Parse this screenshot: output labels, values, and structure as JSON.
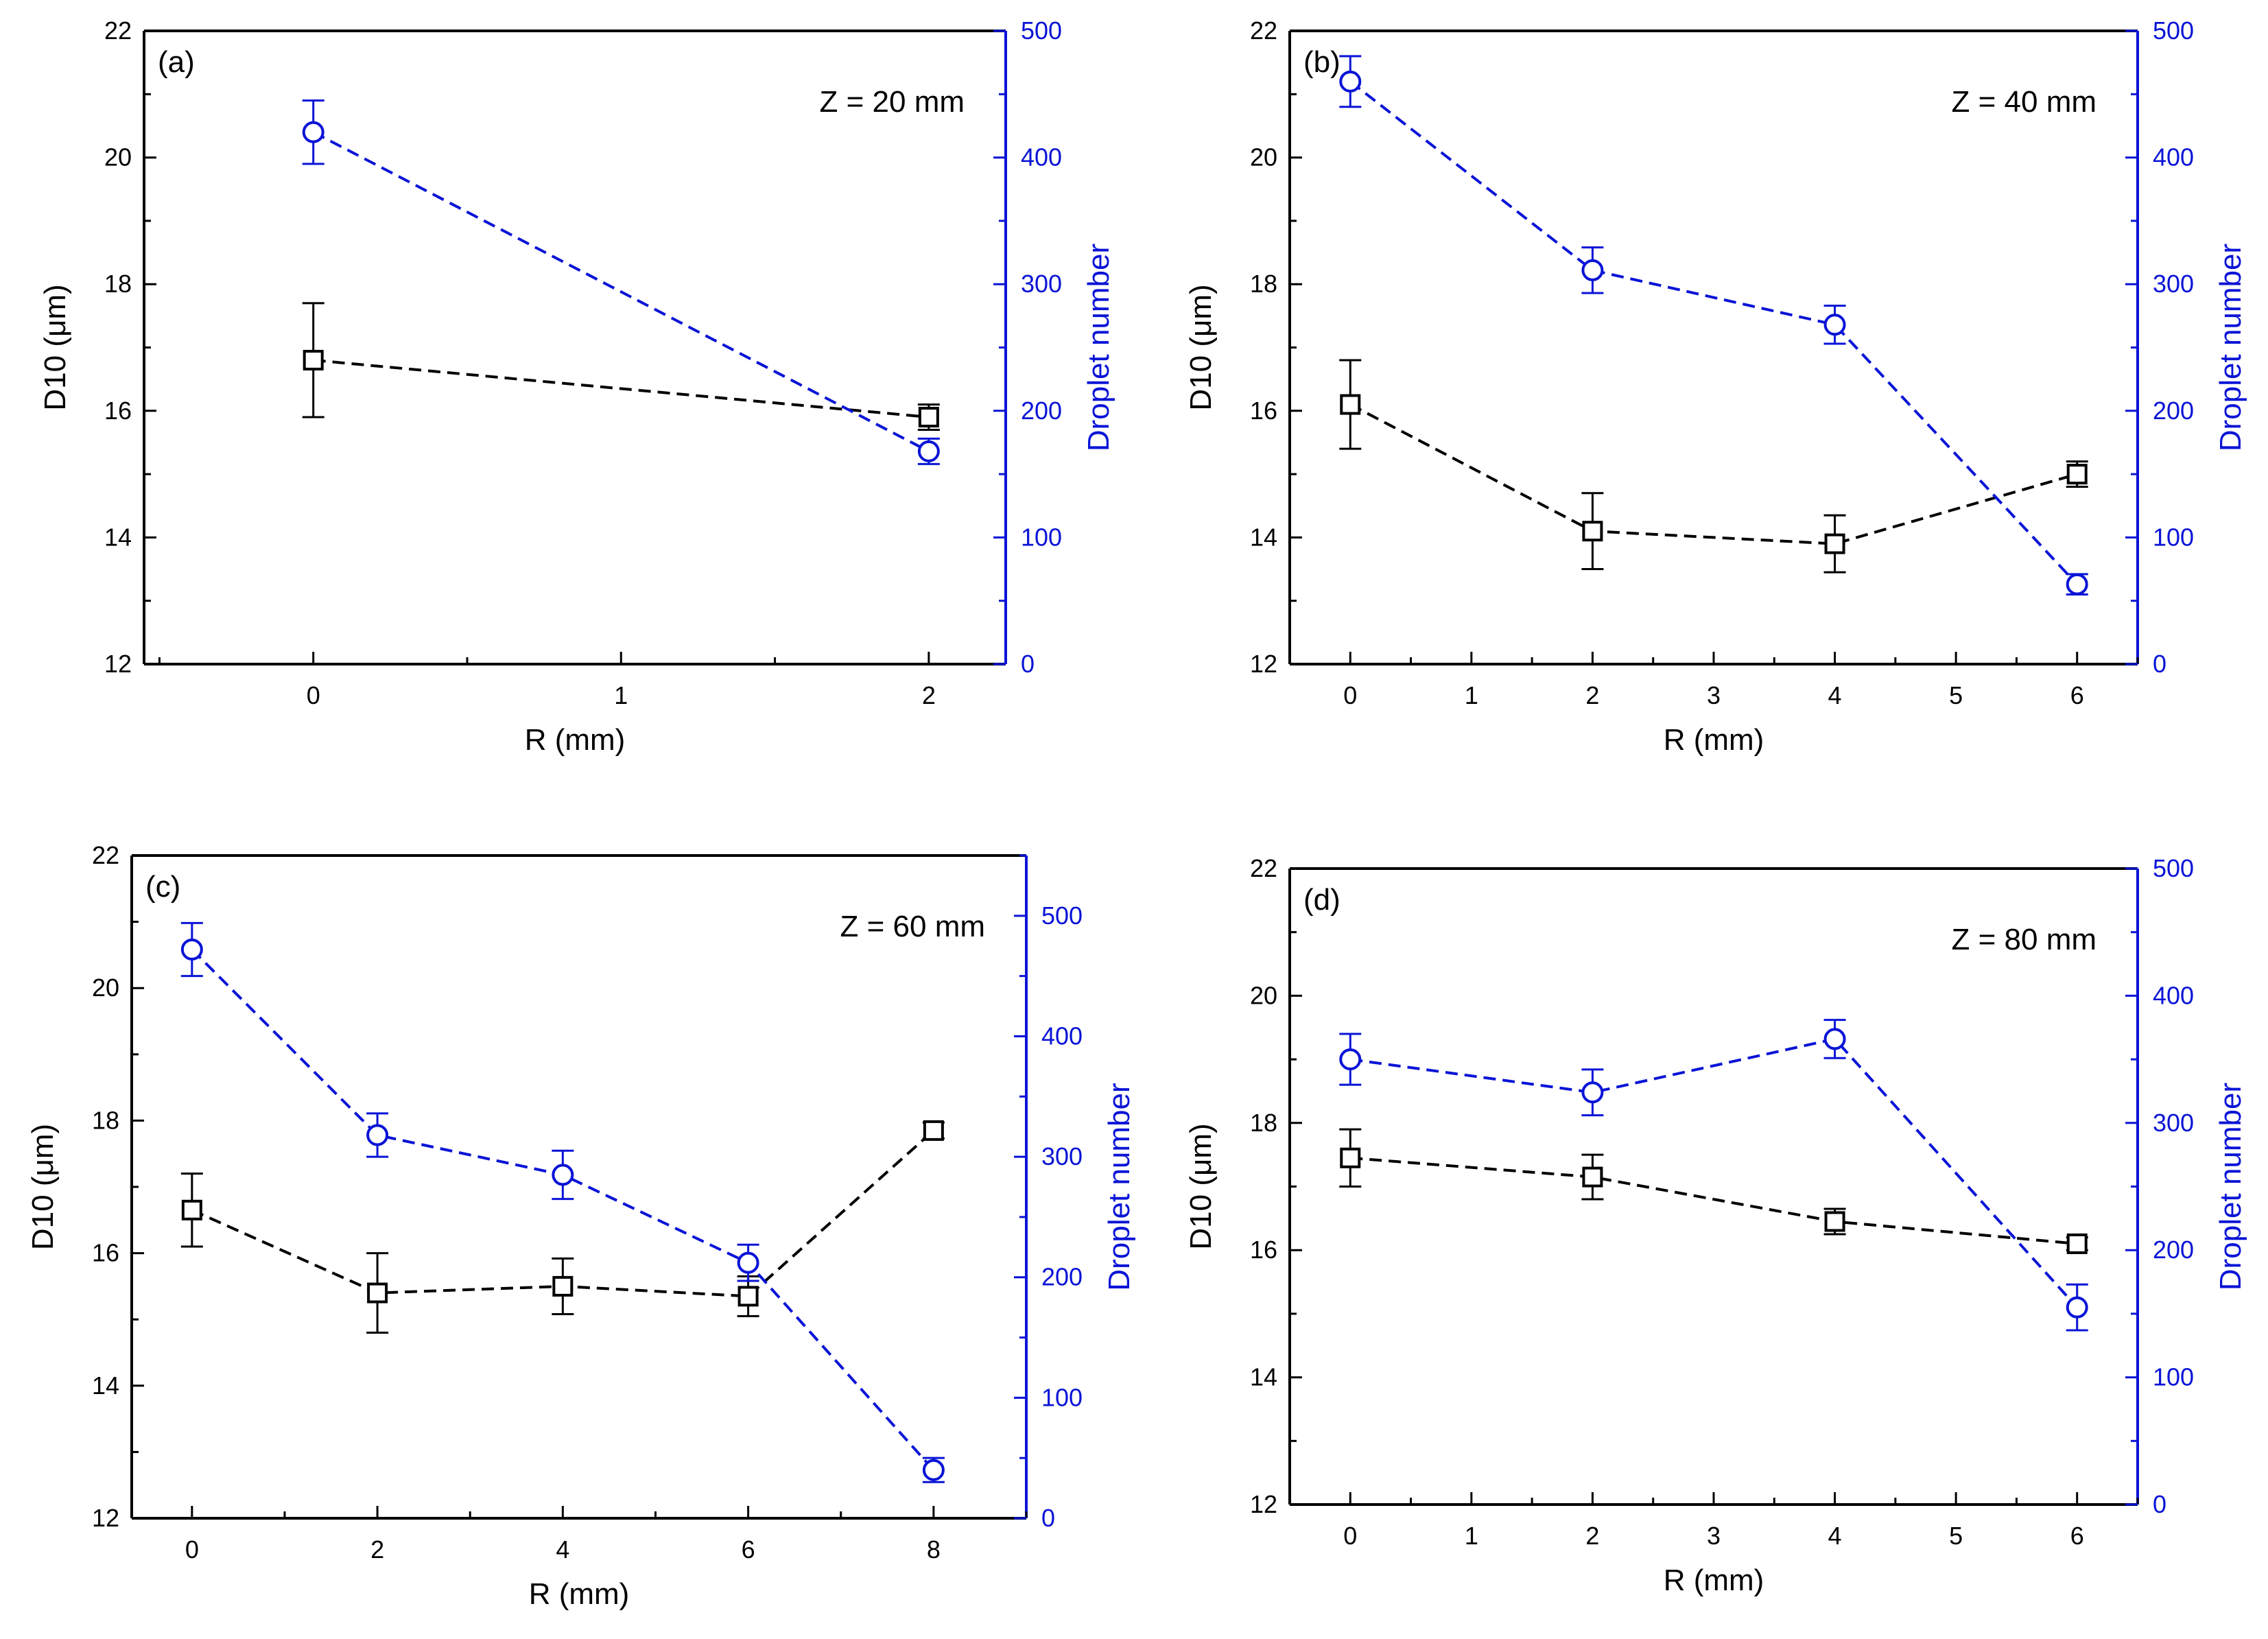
{
  "colors": {
    "d10": "#000000",
    "droplet": "#0a14d6",
    "background": "#ffffff"
  },
  "chart_data": [
    {
      "type": "line",
      "panel_label": "(a)",
      "annotation": "Z = 20 mm",
      "xlabel": "R (mm)",
      "ylabel": "D10 (μm)",
      "ylabel_right": "Droplet number",
      "xlim": [
        -0.55,
        2.25
      ],
      "ylim": [
        12,
        22
      ],
      "ylim_right": [
        0,
        500
      ],
      "xticks": [
        0,
        1,
        2
      ],
      "yticks": [
        12,
        14,
        16,
        18,
        20,
        22
      ],
      "yticks_right": [
        0,
        100,
        200,
        300,
        400,
        500
      ],
      "series": [
        {
          "name": "D10",
          "axis": "left",
          "marker": "square",
          "color": "#000000",
          "x": [
            0,
            2
          ],
          "y": [
            16.8,
            15.9
          ],
          "err": [
            0.9,
            0.2
          ]
        },
        {
          "name": "Droplet number",
          "axis": "right",
          "marker": "circle",
          "color": "#0a14d6",
          "x": [
            0,
            2
          ],
          "y": [
            420,
            168
          ],
          "err": [
            25,
            10
          ]
        }
      ]
    },
    {
      "type": "line",
      "panel_label": "(b)",
      "annotation": "Z = 40 mm",
      "xlabel": "R (mm)",
      "ylabel": "D10 (μm)",
      "ylabel_right": "Droplet number",
      "xlim": [
        -0.5,
        6.5
      ],
      "ylim": [
        12,
        22
      ],
      "ylim_right": [
        0,
        500
      ],
      "xticks": [
        0,
        1,
        2,
        3,
        4,
        5,
        6
      ],
      "yticks": [
        12,
        14,
        16,
        18,
        20,
        22
      ],
      "yticks_right": [
        0,
        100,
        200,
        300,
        400,
        500
      ],
      "series": [
        {
          "name": "D10",
          "axis": "left",
          "marker": "square",
          "color": "#000000",
          "x": [
            0,
            2,
            4,
            6
          ],
          "y": [
            16.1,
            14.1,
            13.9,
            15.0
          ],
          "err": [
            0.7,
            0.6,
            0.45,
            0.2
          ]
        },
        {
          "name": "Droplet number",
          "axis": "right",
          "marker": "circle",
          "color": "#0a14d6",
          "x": [
            0,
            2,
            4,
            6
          ],
          "y": [
            460,
            311,
            268,
            63
          ],
          "err": [
            20,
            18,
            15,
            8
          ]
        }
      ]
    },
    {
      "type": "line",
      "panel_label": "(c)",
      "annotation": "Z = 60 mm",
      "xlabel": "R (mm)",
      "ylabel": "D10 (μm)",
      "ylabel_right": "Droplet number",
      "xlim": [
        -0.65,
        9.0
      ],
      "ylim": [
        12,
        22
      ],
      "ylim_right": [
        0,
        550
      ],
      "xticks": [
        0,
        2,
        4,
        6,
        8
      ],
      "yticks": [
        12,
        14,
        16,
        18,
        20,
        22
      ],
      "yticks_right": [
        0,
        100,
        200,
        300,
        400,
        500
      ],
      "series": [
        {
          "name": "D10",
          "axis": "left",
          "marker": "square",
          "color": "#000000",
          "x": [
            0,
            2,
            4,
            6,
            8
          ],
          "y": [
            16.65,
            15.4,
            15.5,
            15.35,
            17.85
          ],
          "err": [
            0.55,
            0.6,
            0.42,
            0.3,
            0.12
          ]
        },
        {
          "name": "Droplet number",
          "axis": "right",
          "marker": "circle",
          "color": "#0a14d6",
          "x": [
            0,
            2,
            4,
            6,
            8
          ],
          "y": [
            472,
            318,
            285,
            212,
            40
          ],
          "err": [
            22,
            18,
            20,
            15,
            10
          ]
        }
      ]
    },
    {
      "type": "line",
      "panel_label": "(d)",
      "annotation": "Z = 80 mm",
      "xlabel": "R (mm)",
      "ylabel": "D10 (μm)",
      "ylabel_right": "Droplet number",
      "xlim": [
        -0.5,
        6.5
      ],
      "ylim": [
        12,
        22
      ],
      "ylim_right": [
        0,
        500
      ],
      "xticks": [
        0,
        1,
        2,
        3,
        4,
        5,
        6
      ],
      "yticks": [
        12,
        14,
        16,
        18,
        20,
        22
      ],
      "yticks_right": [
        0,
        100,
        200,
        300,
        400,
        500
      ],
      "series": [
        {
          "name": "D10",
          "axis": "left",
          "marker": "square",
          "color": "#000000",
          "x": [
            0,
            2,
            4,
            6
          ],
          "y": [
            17.45,
            17.15,
            16.45,
            16.1
          ],
          "err": [
            0.45,
            0.35,
            0.2,
            0.1
          ]
        },
        {
          "name": "Droplet number",
          "axis": "right",
          "marker": "circle",
          "color": "#0a14d6",
          "x": [
            0,
            2,
            4,
            6
          ],
          "y": [
            350,
            324,
            366,
            155
          ],
          "err": [
            20,
            18,
            15,
            18
          ]
        }
      ]
    }
  ]
}
